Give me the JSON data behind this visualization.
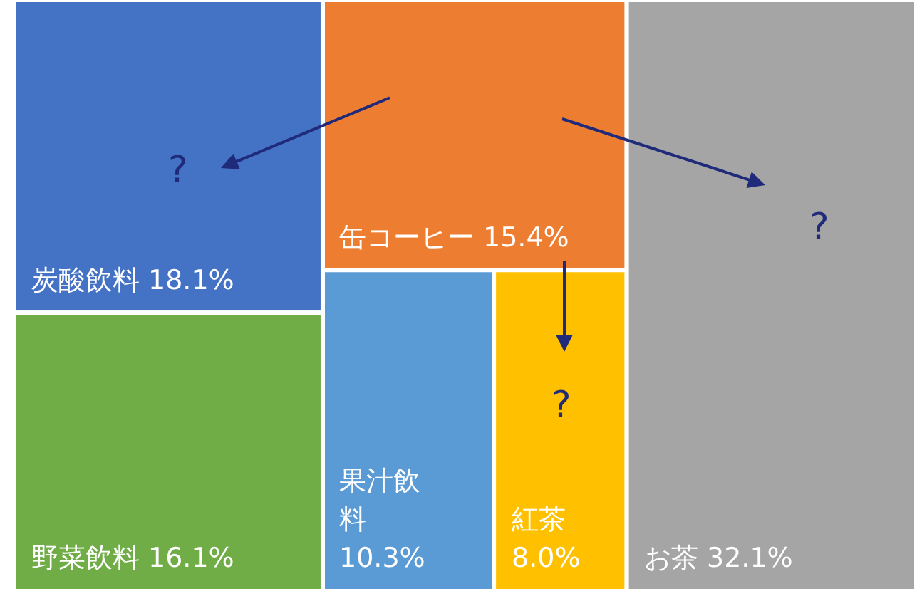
{
  "chart_data": {
    "type": "other",
    "categories": [
      "炭酸飲料",
      "野菜飲料",
      "缶コーヒー",
      "果汁飲料",
      "紅茶",
      "お茶"
    ],
    "values": [
      18.1,
      16.1,
      15.4,
      10.3,
      8.0,
      32.1
    ],
    "value_labels": [
      "18.1%",
      "16.1%",
      "15.4%",
      "10.3%",
      "8.0%",
      "32.1%"
    ],
    "colors": [
      "#4472c4",
      "#70ad47",
      "#ed7d31",
      "#5b9bd5",
      "#ffc000",
      "#a5a5a5"
    ],
    "annotations": [
      "?",
      "?",
      "?"
    ]
  }
}
